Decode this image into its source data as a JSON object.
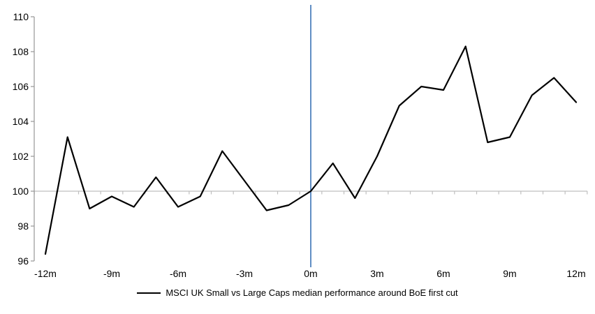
{
  "chart_data": {
    "type": "line",
    "title": "",
    "x_unit": "months relative to first cut",
    "x": [
      -12,
      -11,
      -10,
      -9,
      -8,
      -7,
      -6,
      -5,
      -4,
      -3,
      -2,
      -1,
      0,
      1,
      2,
      3,
      4,
      5,
      6,
      7,
      8,
      9,
      10,
      11,
      12
    ],
    "series": [
      {
        "name": "MSCI UK Small vs Large Caps median performance around BoE first cut",
        "color": "#000000",
        "values": [
          96.4,
          103.1,
          99.0,
          99.7,
          99.1,
          100.8,
          99.1,
          99.7,
          102.3,
          100.6,
          98.9,
          99.2,
          100.0,
          101.6,
          99.6,
          102.0,
          104.9,
          106.0,
          105.8,
          108.3,
          102.8,
          103.1,
          105.5,
          106.5,
          105.1
        ]
      }
    ],
    "ylim": [
      96,
      110
    ],
    "yticks": [
      96,
      98,
      100,
      102,
      104,
      106,
      108,
      110
    ],
    "xticks": [
      {
        "month": -12,
        "label": "-12m"
      },
      {
        "month": -9,
        "label": "-9m"
      },
      {
        "month": -6,
        "label": "-6m"
      },
      {
        "month": -3,
        "label": "-3m"
      },
      {
        "month": 0,
        "label": "0m"
      },
      {
        "month": 3,
        "label": "3m"
      },
      {
        "month": 6,
        "label": "6m"
      },
      {
        "month": 9,
        "label": "9m"
      },
      {
        "month": 12,
        "label": "12m"
      }
    ],
    "baseline_value": 100,
    "event_line_month": 0,
    "grid": false,
    "legend_position": "bottom",
    "colors": {
      "series_line": "#000000",
      "event_line": "#4F81BD",
      "baseline_line": "#BFBFBF",
      "axis_line": "#969696",
      "tick_label": "#000000"
    }
  },
  "legend": {
    "label": "MSCI UK Small vs Large Caps median performance around BoE first cut"
  }
}
